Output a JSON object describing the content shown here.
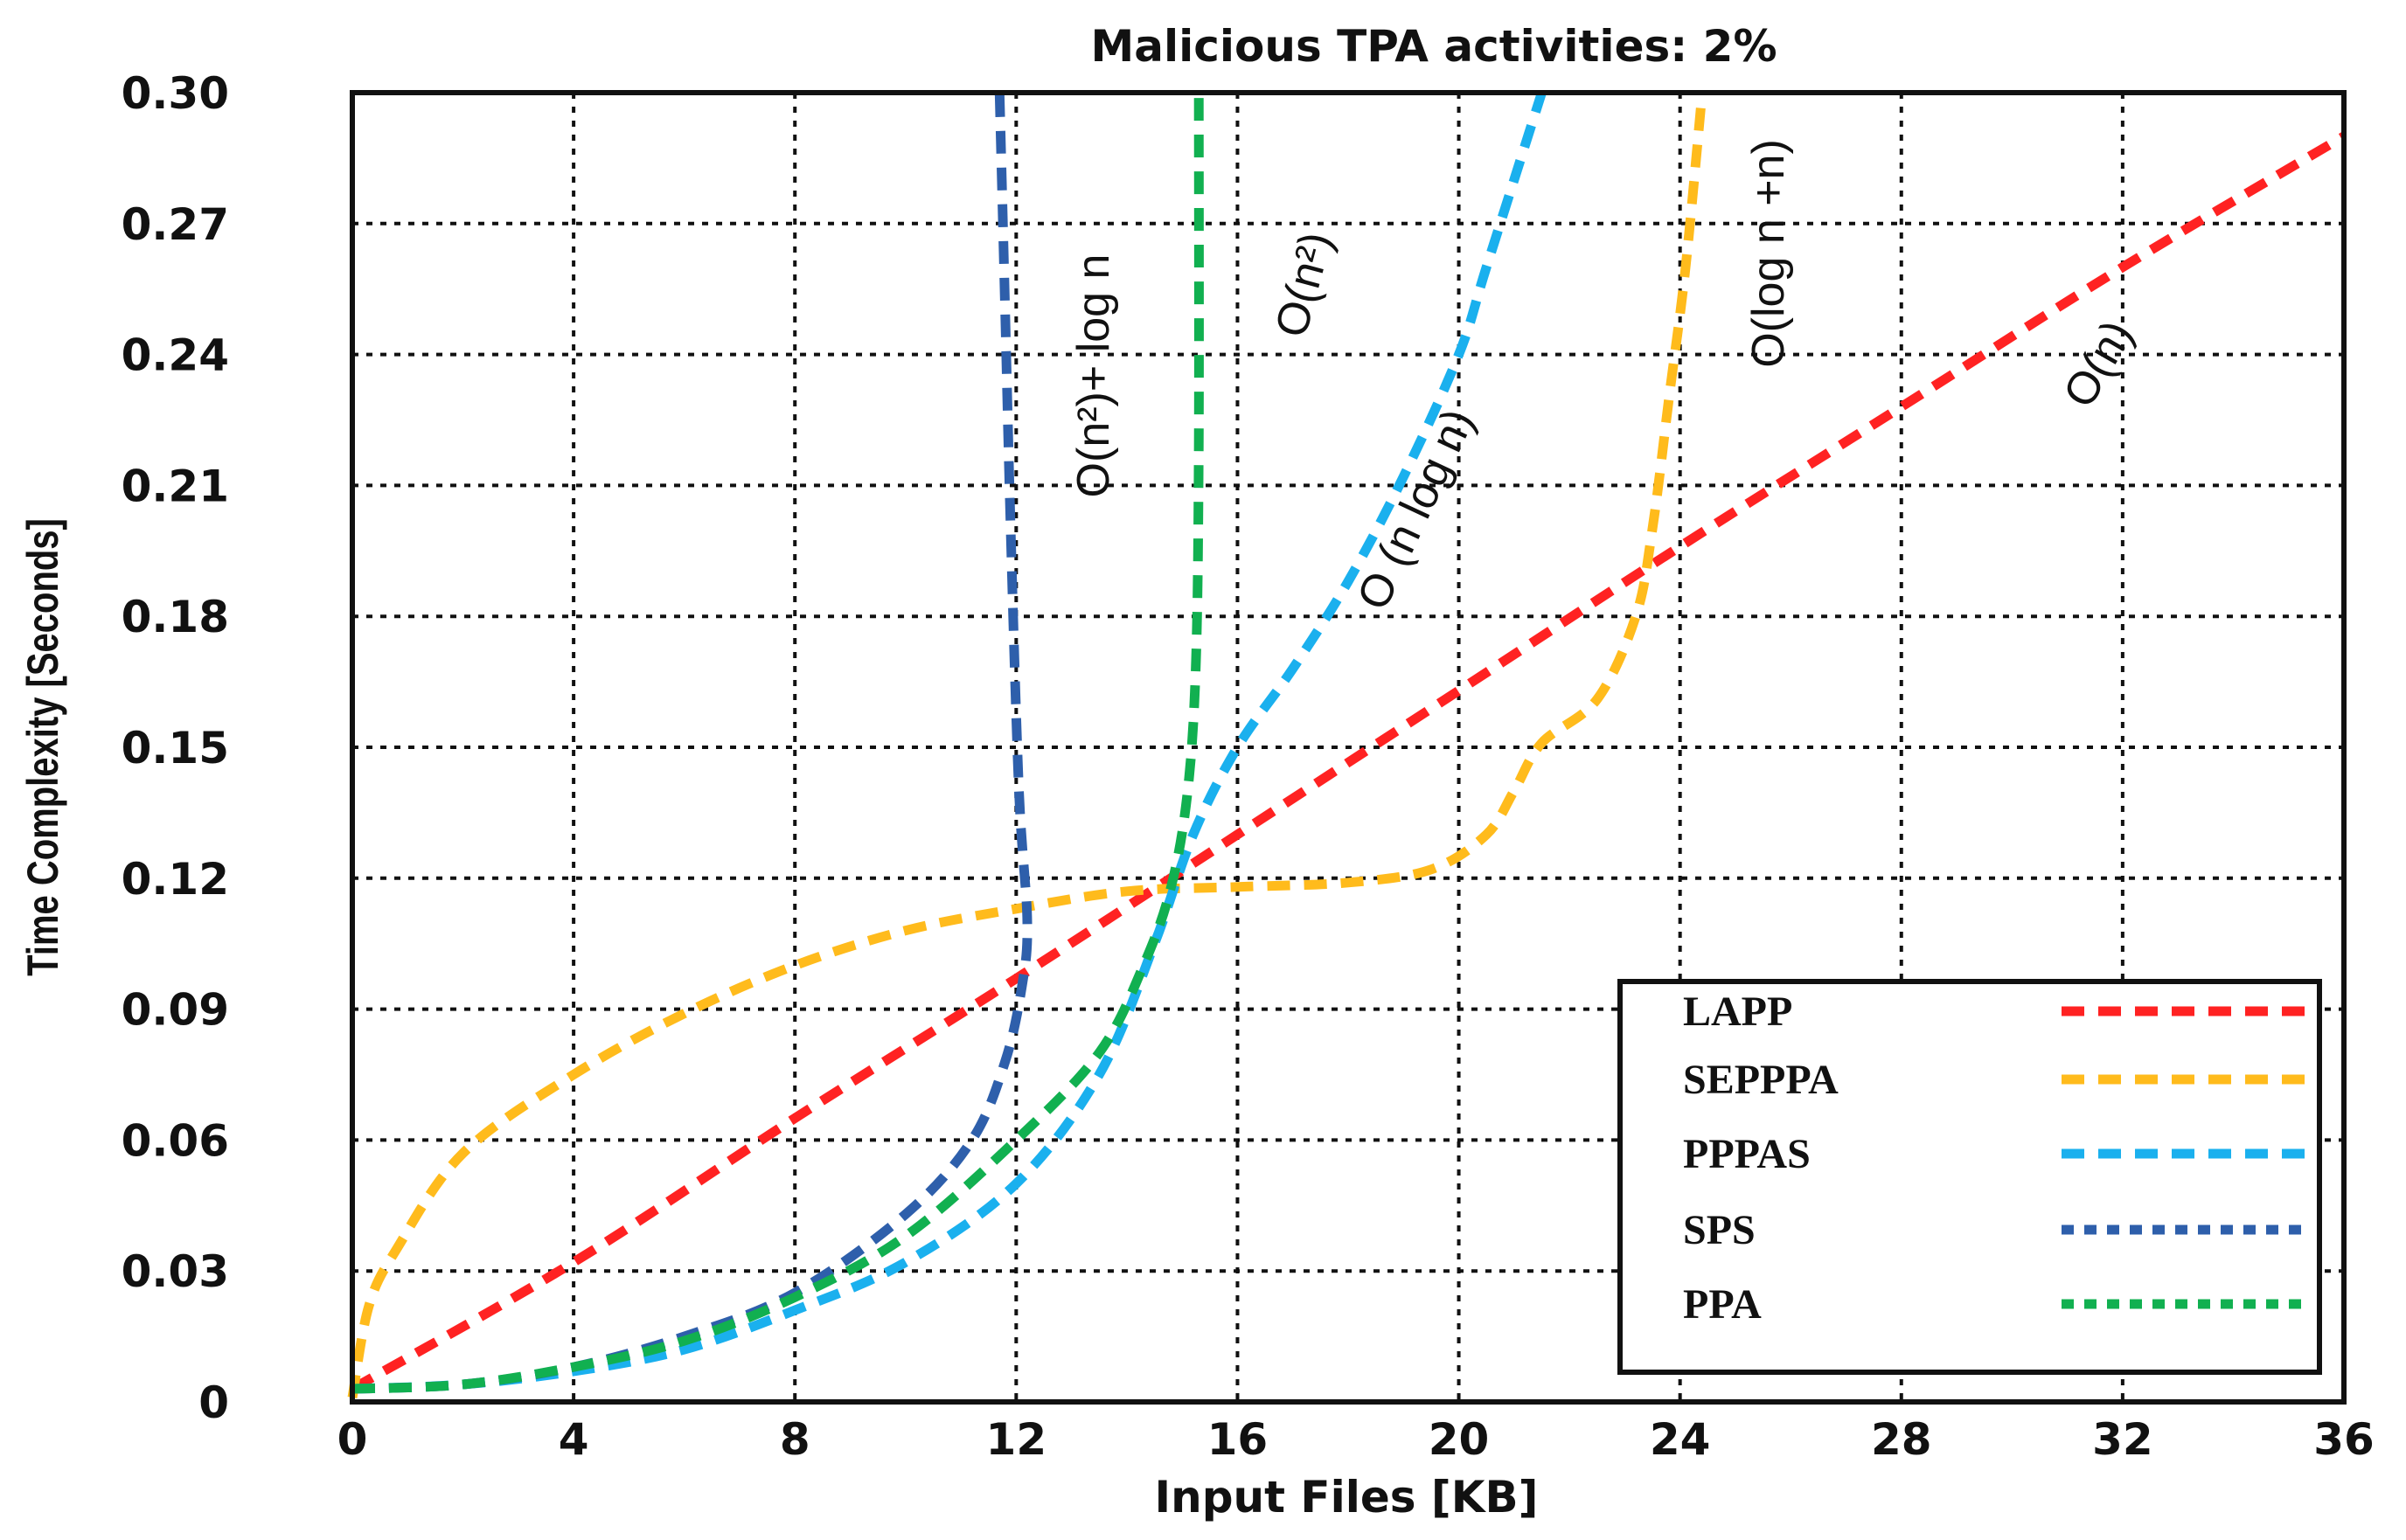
{
  "chart_data": {
    "type": "line",
    "title": "Malicious TPA activities: 2%",
    "xlabel": "Input Files [KB]",
    "ylabel": "Time Complexity [Seconds]",
    "xlim": [
      0,
      36
    ],
    "ylim": [
      0,
      0.3
    ],
    "x_ticks": [
      0,
      4,
      8,
      12,
      16,
      20,
      24,
      28,
      32,
      36
    ],
    "x_tick_labels": [
      "0",
      "4",
      "8",
      "12",
      "16",
      "20",
      "24",
      "28",
      "32",
      "36"
    ],
    "y_ticks": [
      0,
      0.03,
      0.06,
      0.09,
      0.12,
      0.15,
      0.18,
      0.21,
      0.24,
      0.27,
      0.3
    ],
    "y_tick_labels": [
      "0",
      "0.03",
      "0.06",
      "0.09",
      "0.12",
      "0.15",
      "0.18",
      "0.21",
      "0.24",
      "0.27",
      "0.30"
    ],
    "grid": true,
    "legend_position": "bottom-right",
    "series": [
      {
        "name": "LAPP",
        "color": "#ff2222",
        "dash": "long",
        "points": [
          [
            0,
            0.003
          ],
          [
            4,
            0.032
          ],
          [
            8,
            0.065
          ],
          [
            12,
            0.097
          ],
          [
            16,
            0.13
          ],
          [
            20,
            0.163
          ],
          [
            24,
            0.196
          ],
          [
            28,
            0.228
          ],
          [
            32,
            0.26
          ],
          [
            36,
            0.29
          ]
        ]
      },
      {
        "name": "SEPPPA",
        "color": "#ffbb1c",
        "dash": "long",
        "points": [
          [
            0,
            0.001
          ],
          [
            0.3,
            0.022
          ],
          [
            0.8,
            0.035
          ],
          [
            2,
            0.057
          ],
          [
            4,
            0.075
          ],
          [
            6,
            0.089
          ],
          [
            8,
            0.1
          ],
          [
            10,
            0.108
          ],
          [
            12,
            0.113
          ],
          [
            14,
            0.117
          ],
          [
            16,
            0.118
          ],
          [
            18,
            0.119
          ],
          [
            19.5,
            0.122
          ],
          [
            20.5,
            0.13
          ],
          [
            21,
            0.14
          ],
          [
            21.5,
            0.151
          ],
          [
            22.5,
            0.161
          ],
          [
            23.2,
            0.18
          ],
          [
            23.5,
            0.2
          ],
          [
            23.8,
            0.23
          ],
          [
            24.1,
            0.26
          ],
          [
            24.4,
            0.3
          ]
        ]
      },
      {
        "name": "PPPAS",
        "color": "#1ab0ee",
        "dash": "long",
        "points": [
          [
            0,
            0.003
          ],
          [
            2,
            0.004
          ],
          [
            4,
            0.007
          ],
          [
            6,
            0.012
          ],
          [
            8,
            0.021
          ],
          [
            10,
            0.032
          ],
          [
            12,
            0.05
          ],
          [
            13.5,
            0.075
          ],
          [
            14.5,
            0.105
          ],
          [
            15.2,
            0.13
          ],
          [
            16,
            0.15
          ],
          [
            17,
            0.168
          ],
          [
            18,
            0.188
          ],
          [
            19,
            0.212
          ],
          [
            20,
            0.24
          ],
          [
            20.5,
            0.26
          ],
          [
            21.5,
            0.3
          ]
        ]
      },
      {
        "name": "SPS",
        "color": "#2e5fab",
        "dash": "short",
        "points": [
          [
            0,
            0.003
          ],
          [
            2,
            0.004
          ],
          [
            4,
            0.008
          ],
          [
            6,
            0.015
          ],
          [
            8,
            0.025
          ],
          [
            10,
            0.043
          ],
          [
            11.2,
            0.06
          ],
          [
            11.8,
            0.078
          ],
          [
            12.1,
            0.095
          ],
          [
            12.2,
            0.11
          ],
          [
            12.05,
            0.14
          ],
          [
            11.9,
            0.2
          ],
          [
            11.8,
            0.25
          ],
          [
            11.7,
            0.3
          ]
        ]
      },
      {
        "name": "PPA",
        "color": "#11b050",
        "dash": "short",
        "points": [
          [
            0,
            0.003
          ],
          [
            2,
            0.004
          ],
          [
            4,
            0.008
          ],
          [
            6,
            0.014
          ],
          [
            8,
            0.024
          ],
          [
            10,
            0.038
          ],
          [
            12,
            0.06
          ],
          [
            13.5,
            0.08
          ],
          [
            14.3,
            0.1
          ],
          [
            14.8,
            0.118
          ],
          [
            15.1,
            0.14
          ],
          [
            15.25,
            0.17
          ],
          [
            15.3,
            0.22
          ],
          [
            15.3,
            0.3
          ]
        ]
      }
    ],
    "annotations": [
      {
        "text": "O(n²)+ log n",
        "near": [
          13,
          0.28
        ]
      },
      {
        "text": "O(n²)",
        "near": [
          17,
          0.25
        ]
      },
      {
        "text": "O (n log n)",
        "near": [
          19.5,
          0.2
        ]
      },
      {
        "text": "O(log n +n)",
        "near": [
          25.4,
          0.27
        ]
      },
      {
        "text": "O(n)",
        "near": [
          31,
          0.23
        ]
      }
    ]
  }
}
